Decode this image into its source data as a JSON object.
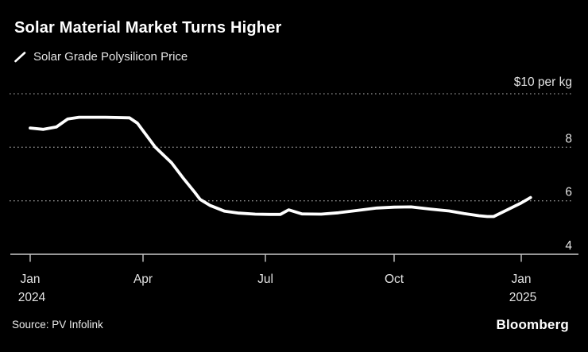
{
  "header": {
    "title": "Solar Material Market Turns Higher",
    "legend": {
      "series_label": "Solar Grade Polysilicon Price",
      "marker": "diagonal-line",
      "marker_color": "#ffffff"
    }
  },
  "chart_data": {
    "type": "line",
    "title": "Solar Material Market Turns Higher",
    "series_name": "Solar Grade Polysilicon Price",
    "unit_label": "$10 per kg",
    "y_unit": "USD per kg",
    "x_unit": "months since Jan 2024 (fractional)",
    "ylim": [
      4,
      10.3
    ],
    "grid": "dotted-horizontal",
    "legend_position": "top-left",
    "y_ticks": [
      {
        "value": 10,
        "label": "$10 per kg",
        "unit": true
      },
      {
        "value": 8,
        "label": "8"
      },
      {
        "value": 6,
        "label": "6"
      },
      {
        "value": 4,
        "label": "4"
      }
    ],
    "x_ticks": [
      {
        "m": 0,
        "label": "Jan",
        "sub": "2024"
      },
      {
        "m": 3,
        "label": "Apr"
      },
      {
        "m": 6,
        "label": "Jul"
      },
      {
        "m": 9,
        "label": "Oct"
      },
      {
        "m": 12,
        "label": "Jan",
        "sub": "2025"
      }
    ],
    "points": [
      [
        0,
        8.72
      ],
      [
        0.35,
        8.67
      ],
      [
        0.7,
        8.76
      ],
      [
        1.0,
        9.06
      ],
      [
        1.3,
        9.12
      ],
      [
        2.0,
        9.12
      ],
      [
        2.64,
        9.1
      ],
      [
        2.85,
        8.9
      ],
      [
        3.3,
        8.0
      ],
      [
        3.7,
        7.42
      ],
      [
        4.0,
        6.82
      ],
      [
        4.25,
        6.35
      ],
      [
        4.4,
        6.05
      ],
      [
        4.65,
        5.82
      ],
      [
        5.0,
        5.61
      ],
      [
        5.35,
        5.54
      ],
      [
        5.75,
        5.5
      ],
      [
        6.1,
        5.49
      ],
      [
        6.35,
        5.49
      ],
      [
        6.54,
        5.66
      ],
      [
        6.85,
        5.51
      ],
      [
        7.3,
        5.5
      ],
      [
        7.7,
        5.55
      ],
      [
        8.1,
        5.63
      ],
      [
        8.6,
        5.73
      ],
      [
        9.0,
        5.76
      ],
      [
        9.4,
        5.77
      ],
      [
        9.85,
        5.69
      ],
      [
        10.3,
        5.62
      ],
      [
        10.65,
        5.52
      ],
      [
        11.0,
        5.44
      ],
      [
        11.2,
        5.41
      ],
      [
        11.35,
        5.41
      ],
      [
        12.0,
        5.92
      ],
      [
        12.22,
        6.12
      ]
    ]
  },
  "footer": {
    "source": "Source: PV Infolink",
    "brand": "Bloomberg"
  },
  "colors": {
    "background": "#000000",
    "line": "#ffffff",
    "grid": "#8f8f8f",
    "axis": "#c9c9c9",
    "text": "#e3e3e3",
    "title": "#ffffff"
  }
}
